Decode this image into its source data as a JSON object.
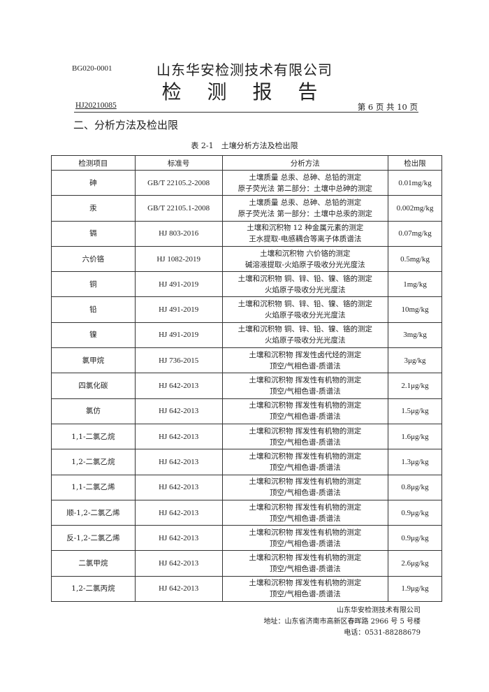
{
  "header": {
    "form_code": "BG020-0001",
    "company": "山东华安检测技术有限公司",
    "title": "检 测 报 告",
    "report_no": "HJ20210085",
    "page_info": "第 6 页 共 10 页"
  },
  "section_title": "二、分析方法及检出限",
  "table": {
    "caption": "表 2-1　土壤分析方法及检出限",
    "headers": [
      "检测项目",
      "标准号",
      "分析方法",
      "检出限"
    ],
    "rows": [
      {
        "item": "砷",
        "std": "GB/T 22105.2-2008",
        "method1": "土壤质量 总汞、总砷、总铅的测定",
        "method2": "原子荧光法 第二部分：土壤中总砷的测定",
        "limit": "0.01mg/kg"
      },
      {
        "item": "汞",
        "std": "GB/T 22105.1-2008",
        "method1": "土壤质量 总汞、总砷、总铅的测定",
        "method2": "原子荧光法 第一部分：土壤中总汞的测定",
        "limit": "0.002mg/kg"
      },
      {
        "item": "镉",
        "std": "HJ 803-2016",
        "method1": "土壤和沉积物 12 种金属元素的测定",
        "method2": "王水提取-电感耦合等离子体质谱法",
        "limit": "0.07mg/kg"
      },
      {
        "item": "六价铬",
        "std": "HJ 1082-2019",
        "method1": "土壤和沉积物 六价铬的测定",
        "method2": "碱溶液提取-火焰原子吸收分光光度法",
        "limit": "0.5mg/kg"
      },
      {
        "item": "铜",
        "std": "HJ 491-2019",
        "method1": "土壤和沉积物 铜、锌、铅、镍、铬的测定",
        "method2": "火焰原子吸收分光光度法",
        "limit": "1mg/kg"
      },
      {
        "item": "铅",
        "std": "HJ 491-2019",
        "method1": "土壤和沉积物 铜、锌、铅、镍、铬的测定",
        "method2": "火焰原子吸收分光光度法",
        "limit": "10mg/kg"
      },
      {
        "item": "镍",
        "std": "HJ 491-2019",
        "method1": "土壤和沉积物 铜、锌、铅、镍、铬的测定",
        "method2": "火焰原子吸收分光光度法",
        "limit": "3mg/kg"
      },
      {
        "item": "氯甲烷",
        "std": "HJ 736-2015",
        "method1": "土壤和沉积物 挥发性卤代烃的测定",
        "method2": "顶空/气相色谱-质谱法",
        "limit": "3μg/kg"
      },
      {
        "item": "四氯化碳",
        "std": "HJ 642-2013",
        "method1": "土壤和沉积物 挥发性有机物的测定",
        "method2": "顶空/气相色谱-质谱法",
        "limit": "2.1μg/kg"
      },
      {
        "item": "氯仿",
        "std": "HJ 642-2013",
        "method1": "土壤和沉积物 挥发性有机物的测定",
        "method2": "顶空/气相色谱-质谱法",
        "limit": "1.5μg/kg"
      },
      {
        "item": "1,1-二氯乙烷",
        "std": "HJ 642-2013",
        "method1": "土壤和沉积物 挥发性有机物的测定",
        "method2": "顶空/气相色谱-质谱法",
        "limit": "1.6μg/kg"
      },
      {
        "item": "1,2-二氯乙烷",
        "std": "HJ 642-2013",
        "method1": "土壤和沉积物 挥发性有机物的测定",
        "method2": "顶空/气相色谱-质谱法",
        "limit": "1.3μg/kg"
      },
      {
        "item": "1,1-二氯乙烯",
        "std": "HJ 642-2013",
        "method1": "土壤和沉积物 挥发性有机物的测定",
        "method2": "顶空/气相色谱-质谱法",
        "limit": "0.8μg/kg"
      },
      {
        "item": "顺-1,2-二氯乙烯",
        "std": "HJ 642-2013",
        "method1": "土壤和沉积物 挥发性有机物的测定",
        "method2": "顶空/气相色谱-质谱法",
        "limit": "0.9μg/kg"
      },
      {
        "item": "反-1,2-二氯乙烯",
        "std": "HJ 642-2013",
        "method1": "土壤和沉积物 挥发性有机物的测定",
        "method2": "顶空/气相色谱-质谱法",
        "limit": "0.9μg/kg"
      },
      {
        "item": "二氯甲烷",
        "std": "HJ 642-2013",
        "method1": "土壤和沉积物 挥发性有机物的测定",
        "method2": "顶空/气相色谱-质谱法",
        "limit": "2.6μg/kg"
      },
      {
        "item": "1,2-二氯丙烷",
        "std": "HJ 642-2013",
        "method1": "土壤和沉积物 挥发性有机物的测定",
        "method2": "顶空/气相色谱-质谱法",
        "limit": "1.9μg/kg"
      }
    ]
  },
  "footer": {
    "company": "山东华安检测技术有限公司",
    "address": "地址：山东省济南市高新区春晖路 2966 号 5 号楼",
    "phone": "电话：0531-88288679"
  }
}
